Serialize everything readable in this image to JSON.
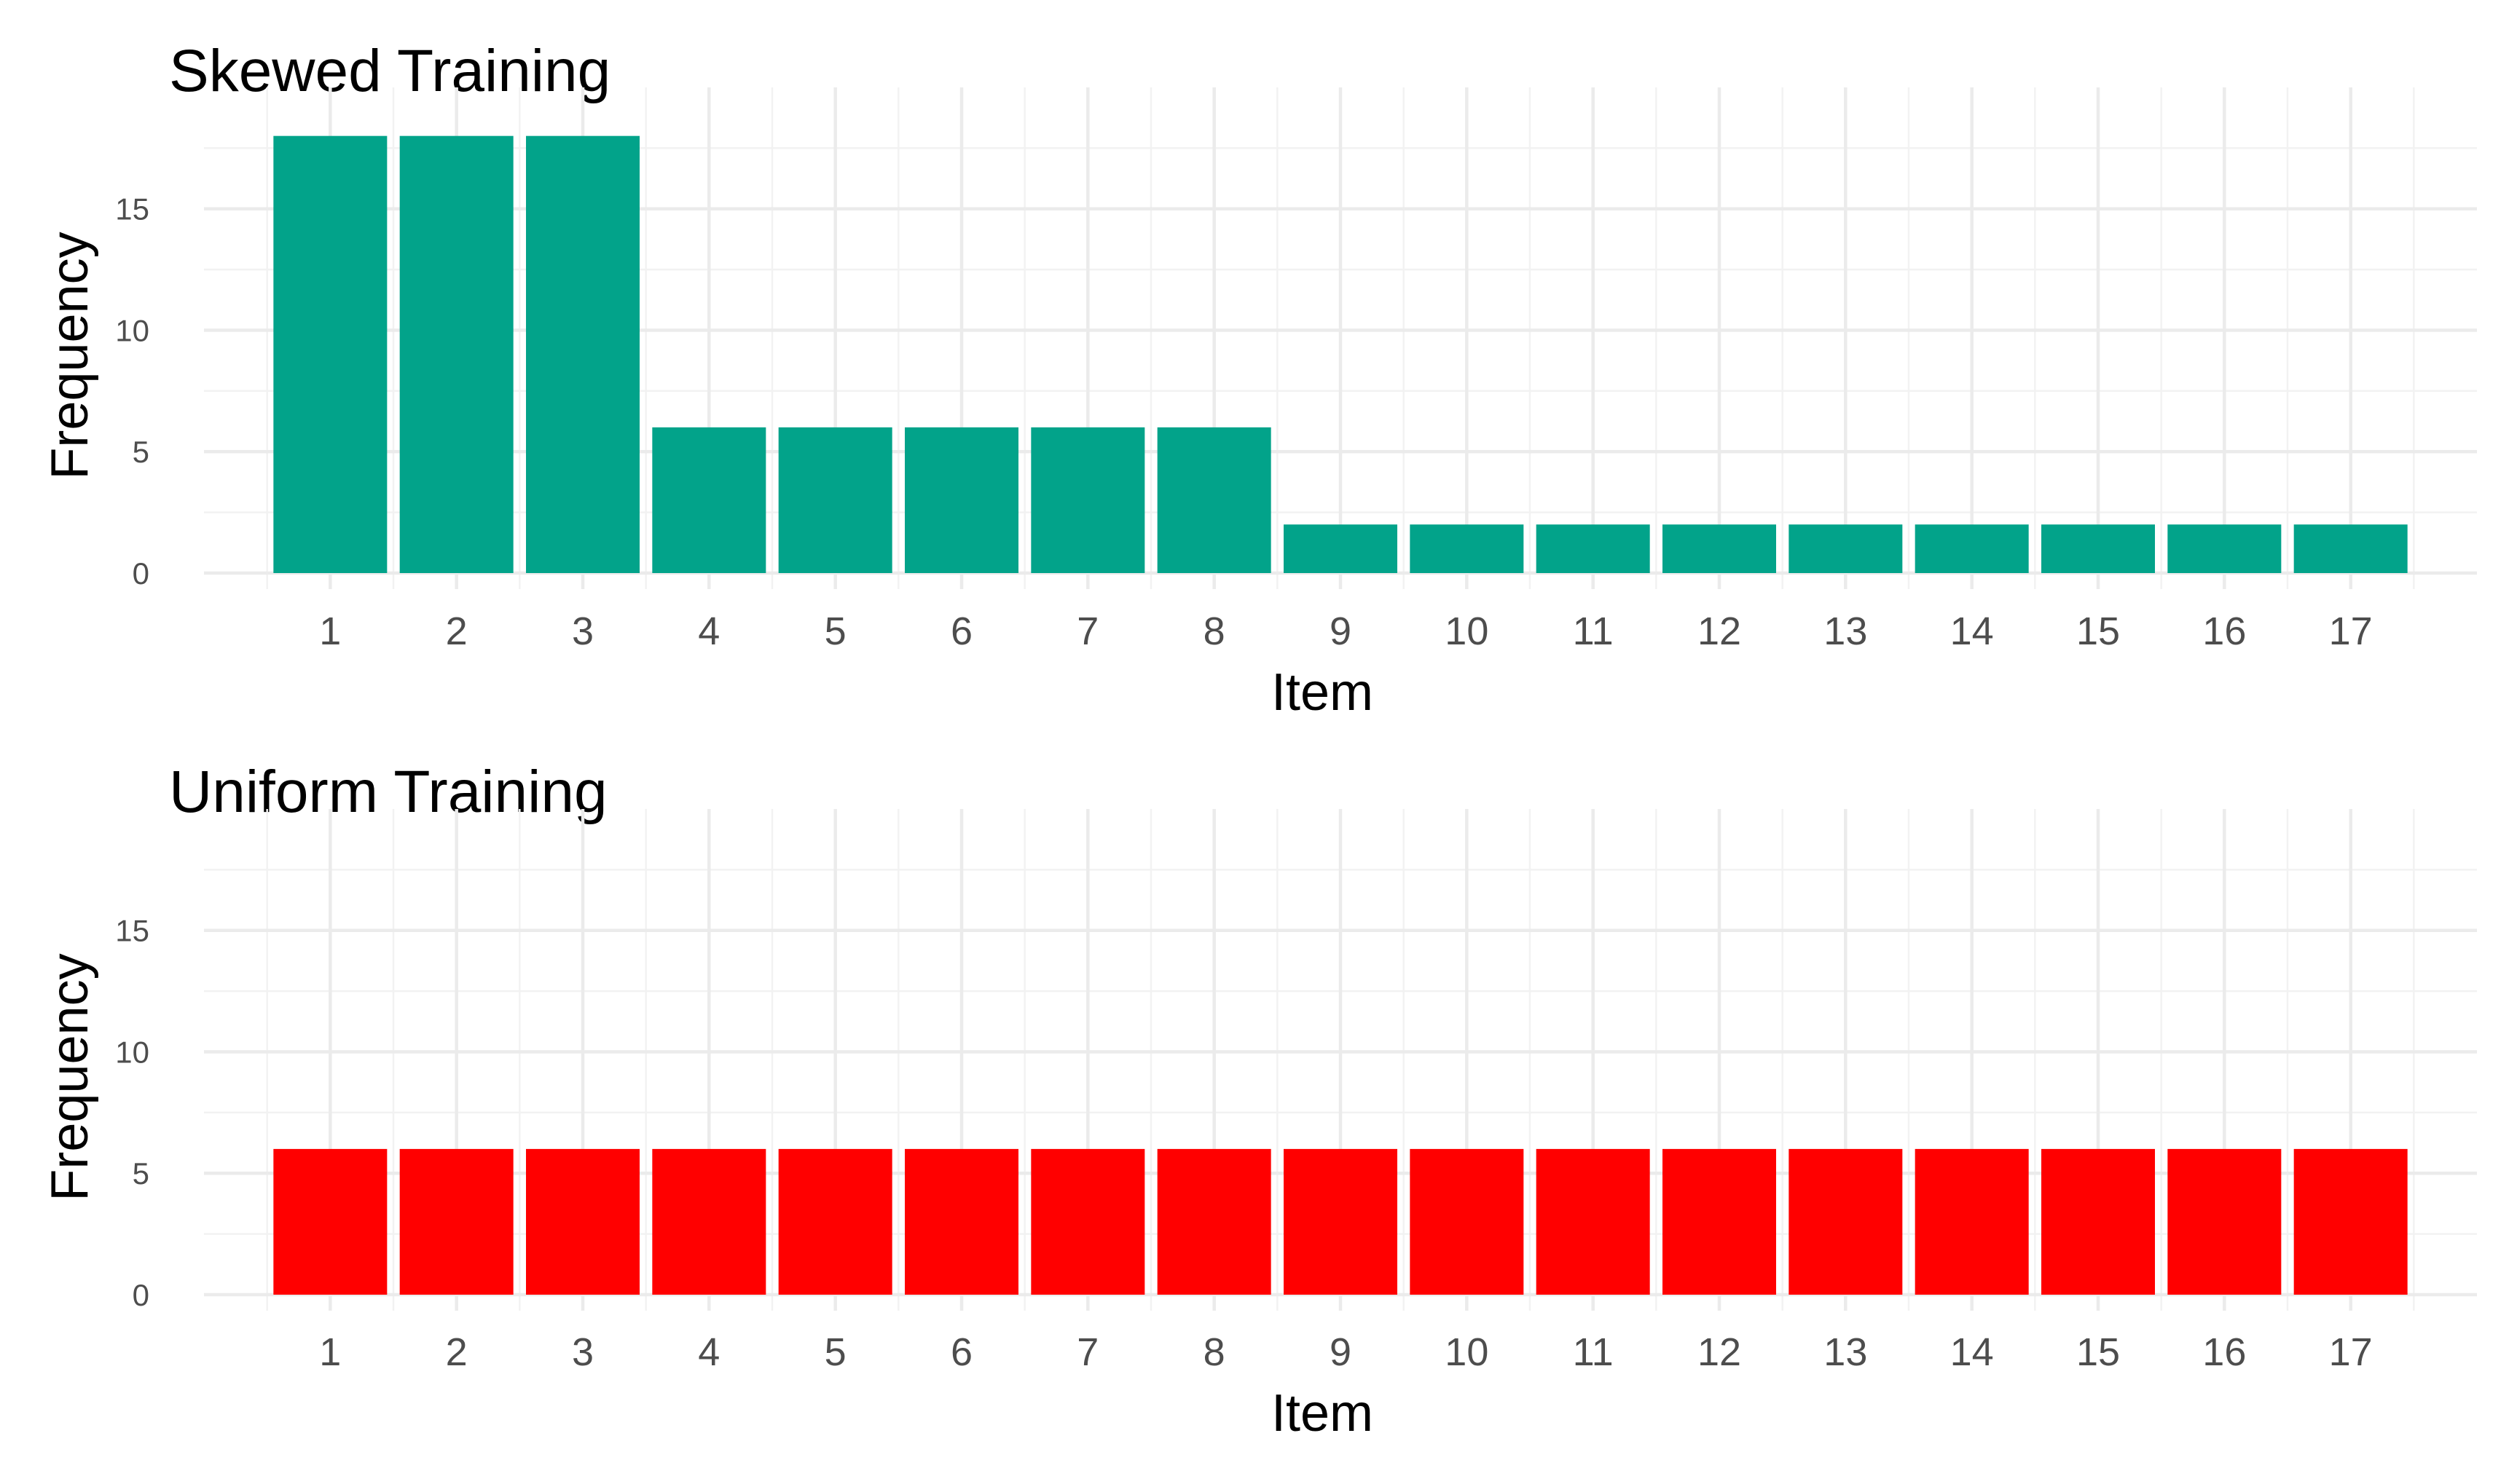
{
  "chart_data": [
    {
      "type": "bar",
      "title": "Skewed Training",
      "xlabel": "Item",
      "ylabel": "Frequency",
      "categories": [
        "1",
        "2",
        "3",
        "4",
        "5",
        "6",
        "7",
        "8",
        "9",
        "10",
        "11",
        "12",
        "13",
        "14",
        "15",
        "16",
        "17"
      ],
      "values": [
        18,
        18,
        18,
        6,
        6,
        6,
        6,
        6,
        2,
        2,
        2,
        2,
        2,
        2,
        2,
        2,
        2
      ],
      "color": "#02a38a",
      "ylim": [
        0,
        18.5
      ],
      "yticks": [
        0,
        5,
        10,
        15
      ],
      "grid": true,
      "legend": "none"
    },
    {
      "type": "bar",
      "title": "Uniform Training",
      "xlabel": "Item",
      "ylabel": "Frequency",
      "categories": [
        "1",
        "2",
        "3",
        "4",
        "5",
        "6",
        "7",
        "8",
        "9",
        "10",
        "11",
        "12",
        "13",
        "14",
        "15",
        "16",
        "17"
      ],
      "values": [
        6,
        6,
        6,
        6,
        6,
        6,
        6,
        6,
        6,
        6,
        6,
        6,
        6,
        6,
        6,
        6,
        6
      ],
      "color": "#ff0000",
      "ylim": [
        0,
        18.5
      ],
      "yticks": [
        0,
        5,
        10,
        15
      ],
      "grid": true,
      "legend": "none"
    }
  ]
}
